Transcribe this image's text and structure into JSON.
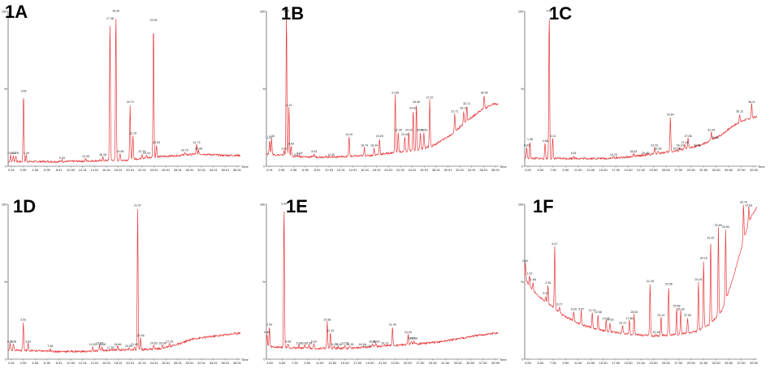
{
  "chart_data": [
    {
      "type": "line",
      "panel_label": "1A",
      "ylim": [
        0,
        100
      ],
      "y_ticks": [
        "100",
        "%",
        "0"
      ],
      "xlim": [
        0.5,
        39.0
      ],
      "x_tick_labels": [
        "0.91",
        "2.95",
        "4.95",
        "6.95",
        "8.91",
        "10.93",
        "12.91",
        "14.91",
        "16.91",
        "18.91",
        "20.91",
        "22.91",
        "24.91",
        "26.91",
        "28.91",
        "30.91",
        "32.91",
        "34.91",
        "36.91",
        "38.91"
      ],
      "x_axis_unit": "Time",
      "color": "#e8393c",
      "baseline": [
        [
          0.5,
          3
        ],
        [
          10,
          3
        ],
        [
          20,
          4
        ],
        [
          25,
          6
        ],
        [
          29,
          7
        ],
        [
          32,
          8
        ],
        [
          36,
          7
        ],
        [
          39,
          7
        ]
      ],
      "peaks": [
        {
          "x": 0.91,
          "y": 7,
          "label": "0.91"
        },
        {
          "x": 1.35,
          "y": 7,
          "label": "1.35"
        },
        {
          "x": 1.76,
          "y": 7,
          "label": "1.76"
        },
        {
          "x": 3.05,
          "y": 47,
          "label": "3.05"
        },
        {
          "x": 3.49,
          "y": 7,
          "label": "3.49"
        },
        {
          "x": 9.43,
          "y": 4,
          "label": "9.43"
        },
        {
          "x": 13.35,
          "y": 5,
          "label": "13.35"
        },
        {
          "x": 16.18,
          "y": 6,
          "label": "16.18"
        },
        {
          "x": 17.38,
          "y": 94,
          "label": "17.38"
        },
        {
          "x": 18.36,
          "y": 99,
          "label": "18.36"
        },
        {
          "x": 19.06,
          "y": 8,
          "label": "19.06"
        },
        {
          "x": 20.72,
          "y": 40,
          "label": "20.72"
        },
        {
          "x": 21.19,
          "y": 20,
          "label": "21.19"
        },
        {
          "x": 22.7,
          "y": 8,
          "label": "22.70"
        },
        {
          "x": 23.44,
          "y": 7,
          "label": "23.44"
        },
        {
          "x": 24.59,
          "y": 93,
          "label": "24.59"
        },
        {
          "x": 25.09,
          "y": 14,
          "label": "25.09"
        },
        {
          "x": 29.75,
          "y": 9,
          "label": "29.75"
        },
        {
          "x": 31.73,
          "y": 14,
          "label": "31.73"
        },
        {
          "x": 32.08,
          "y": 10,
          "label": "32.08"
        }
      ]
    },
    {
      "type": "line",
      "panel_label": "1B",
      "ylim": [
        0,
        100
      ],
      "y_ticks": [
        "100",
        "%",
        "0"
      ],
      "xlim": [
        0.5,
        39.0
      ],
      "x_tick_labels": [
        "0.91",
        "2.95",
        "4.95",
        "6.95",
        "8.91",
        "10.93",
        "12.91",
        "14.91",
        "16.91",
        "18.91",
        "20.91",
        "22.91",
        "24.91",
        "26.91",
        "28.91",
        "30.91",
        "32.91",
        "34.91",
        "36.91",
        "38.91"
      ],
      "x_axis_unit": "Time",
      "color": "#e8393c",
      "baseline": [
        [
          0.5,
          8
        ],
        [
          6,
          6
        ],
        [
          12,
          6
        ],
        [
          18,
          7
        ],
        [
          22,
          9
        ],
        [
          25,
          10
        ],
        [
          28,
          13
        ],
        [
          31,
          20
        ],
        [
          34,
          30
        ],
        [
          36,
          36
        ],
        [
          38,
          40
        ],
        [
          39,
          40
        ]
      ],
      "peaks": [
        {
          "x": 1.02,
          "y": 17,
          "label": "1.02"
        },
        {
          "x": 1.35,
          "y": 18,
          "label": "1.35"
        },
        {
          "x": 3.42,
          "y": 10,
          "label": "3.42"
        },
        {
          "x": 3.82,
          "y": 99,
          "label": "3.82"
        },
        {
          "x": 4.23,
          "y": 38,
          "label": "4.23"
        },
        {
          "x": 4.6,
          "y": 13,
          "label": "4.60"
        },
        {
          "x": 5.57,
          "y": 6,
          "label": "5.57"
        },
        {
          "x": 6.0,
          "y": 7,
          "label": "6.00"
        },
        {
          "x": 8.42,
          "y": 8,
          "label": "8.42"
        },
        {
          "x": 11.25,
          "y": 6,
          "label": "11.25"
        },
        {
          "x": 14.2,
          "y": 19,
          "label": "14.20"
        },
        {
          "x": 16.74,
          "y": 12,
          "label": "16.74"
        },
        {
          "x": 18.34,
          "y": 12,
          "label": "18.34"
        },
        {
          "x": 19.25,
          "y": 18,
          "label": "19.25"
        },
        {
          "x": 21.85,
          "y": 46,
          "label": "21.85"
        },
        {
          "x": 22.35,
          "y": 22,
          "label": "22.35"
        },
        {
          "x": 23.44,
          "y": 19,
          "label": "23.44"
        },
        {
          "x": 24.1,
          "y": 22,
          "label": "24.10"
        },
        {
          "x": 24.82,
          "y": 36,
          "label": "24.82"
        },
        {
          "x": 25.36,
          "y": 40,
          "label": "25.36"
        },
        {
          "x": 26.02,
          "y": 22,
          "label": "26.02"
        },
        {
          "x": 26.6,
          "y": 22,
          "label": "26.60"
        },
        {
          "x": 27.57,
          "y": 43,
          "label": "27.57"
        },
        {
          "x": 31.71,
          "y": 34,
          "label": "31.71"
        },
        {
          "x": 33.19,
          "y": 36,
          "label": "33.19"
        },
        {
          "x": 33.71,
          "y": 39,
          "label": "33.71"
        },
        {
          "x": 36.59,
          "y": 46,
          "label": "36.59"
        }
      ]
    },
    {
      "type": "line",
      "panel_label": "1C",
      "ylim": [
        0,
        100
      ],
      "y_ticks": [
        "100",
        "%",
        "0"
      ],
      "xlim": [
        0.5,
        39.0
      ],
      "x_tick_labels": [
        "3.50",
        "5.50",
        "7.50",
        "9.50",
        "11.50",
        "13.50",
        "15.50",
        "17.50",
        "19.50",
        "21.50",
        "23.50",
        "25.50",
        "27.50",
        "29.50",
        "31.50",
        "33.50",
        "35.50",
        "37.50",
        "39.50"
      ],
      "x_axis_unit": "Time",
      "color": "#e8393c",
      "baseline": [
        [
          0.5,
          5
        ],
        [
          8,
          5
        ],
        [
          14,
          5
        ],
        [
          18,
          6
        ],
        [
          22,
          8
        ],
        [
          26,
          10
        ],
        [
          30,
          14
        ],
        [
          33,
          20
        ],
        [
          35,
          26
        ],
        [
          37,
          30
        ],
        [
          39,
          32
        ]
      ],
      "peaks": [
        {
          "x": 0.83,
          "y": 12,
          "label": "0.83"
        },
        {
          "x": 1.38,
          "y": 16,
          "label": "1.38"
        },
        {
          "x": 3.88,
          "y": 15,
          "label": "3.88"
        },
        {
          "x": 4.56,
          "y": 99,
          "label": "4.56"
        },
        {
          "x": 5.14,
          "y": 18,
          "label": "5.14"
        },
        {
          "x": 8.61,
          "y": 7,
          "label": "8.61"
        },
        {
          "x": 15.23,
          "y": 6,
          "label": "15.23"
        },
        {
          "x": 18.53,
          "y": 8,
          "label": "18.53"
        },
        {
          "x": 20.48,
          "y": 7,
          "label": "20.48"
        },
        {
          "x": 22.02,
          "y": 12,
          "label": "22.02"
        },
        {
          "x": 22.58,
          "y": 10,
          "label": "22.58"
        },
        {
          "x": 24.64,
          "y": 32,
          "label": "24.64"
        },
        {
          "x": 25.68,
          "y": 10,
          "label": "25.68"
        },
        {
          "x": 26.24,
          "y": 12,
          "label": "26.24"
        },
        {
          "x": 27.04,
          "y": 14,
          "label": "27.04"
        },
        {
          "x": 27.58,
          "y": 18,
          "label": "27.58"
        },
        {
          "x": 29.05,
          "y": 12,
          "label": "29.05"
        },
        {
          "x": 31.43,
          "y": 22,
          "label": "31.43"
        },
        {
          "x": 32.06,
          "y": 17,
          "label": "32.06"
        },
        {
          "x": 36.12,
          "y": 34,
          "label": "36.12"
        },
        {
          "x": 38.11,
          "y": 40,
          "label": "38.11"
        }
      ]
    },
    {
      "type": "line",
      "panel_label": "1D",
      "ylim": [
        0,
        100
      ],
      "y_ticks": [
        "100",
        "%",
        "0"
      ],
      "xlim": [
        0.5,
        39.0
      ],
      "x_tick_labels": [
        "0.91",
        "2.95",
        "4.95",
        "6.95",
        "8.91",
        "10.93",
        "12.91",
        "14.91",
        "16.91",
        "18.91",
        "20.91",
        "22.91",
        "24.91",
        "26.91",
        "28.91",
        "30.91",
        "32.91",
        "34.91",
        "36.91",
        "38.91"
      ],
      "x_axis_unit": "Time",
      "color": "#e8393c",
      "baseline": [
        [
          0.5,
          6
        ],
        [
          8,
          5
        ],
        [
          14,
          5
        ],
        [
          18,
          6
        ],
        [
          22,
          6
        ],
        [
          26,
          7
        ],
        [
          29,
          10
        ],
        [
          31,
          13
        ],
        [
          33,
          14
        ],
        [
          35,
          15
        ],
        [
          37,
          16
        ],
        [
          39,
          17
        ]
      ],
      "peaks": [
        {
          "x": 0.83,
          "y": 10,
          "label": "0.83"
        },
        {
          "x": 1.38,
          "y": 10,
          "label": "1.38"
        },
        {
          "x": 3.02,
          "y": 24,
          "label": "3.02"
        },
        {
          "x": 3.82,
          "y": 10,
          "label": "3.82"
        },
        {
          "x": 7.48,
          "y": 7,
          "label": "7.48"
        },
        {
          "x": 14.53,
          "y": 8,
          "label": "14.53"
        },
        {
          "x": 15.65,
          "y": 9,
          "label": "15.65"
        },
        {
          "x": 16.08,
          "y": 8,
          "label": "16.08"
        },
        {
          "x": 17.52,
          "y": 6,
          "label": "17.52"
        },
        {
          "x": 18.66,
          "y": 8,
          "label": "18.66"
        },
        {
          "x": 20.5,
          "y": 7,
          "label": "20.50"
        },
        {
          "x": 21.43,
          "y": 8,
          "label": "21.43"
        },
        {
          "x": 21.97,
          "y": 98,
          "label": "21.97"
        },
        {
          "x": 22.46,
          "y": 14,
          "label": "22.46"
        },
        {
          "x": 24.63,
          "y": 9,
          "label": "24.63"
        },
        {
          "x": 26.08,
          "y": 9,
          "label": "26.08"
        },
        {
          "x": 27.25,
          "y": 10,
          "label": "27.25"
        }
      ]
    },
    {
      "type": "line",
      "panel_label": "1E",
      "ylim": [
        0,
        100
      ],
      "y_ticks": [
        "100",
        "%",
        "0"
      ],
      "xlim": [
        0.5,
        39.0
      ],
      "x_tick_labels": [
        "3.50",
        "5.50",
        "7.50",
        "9.50",
        "11.50",
        "13.50",
        "15.50",
        "17.50",
        "19.50",
        "21.50",
        "23.50",
        "25.50",
        "27.50",
        "29.50",
        "31.50",
        "33.50",
        "35.50",
        "37.50",
        "39.50"
      ],
      "x_axis_unit": "Time",
      "color": "#e8393c",
      "baseline": [
        [
          0.5,
          8
        ],
        [
          8,
          7
        ],
        [
          14,
          7
        ],
        [
          18,
          8
        ],
        [
          22,
          9
        ],
        [
          26,
          10
        ],
        [
          29,
          11
        ],
        [
          32,
          13
        ],
        [
          35,
          15
        ],
        [
          37,
          16
        ],
        [
          39,
          17
        ]
      ],
      "peaks": [
        {
          "x": 0.6,
          "y": 16,
          "label": "0.60"
        },
        {
          "x": 1.0,
          "y": 21,
          "label": "1.00"
        },
        {
          "x": 3.42,
          "y": 99,
          "label": "3.42"
        },
        {
          "x": 4.08,
          "y": 10,
          "label": "4.08"
        },
        {
          "x": 5.9,
          "y": 9,
          "label": "5.90"
        },
        {
          "x": 6.83,
          "y": 9,
          "label": "6.83"
        },
        {
          "x": 7.58,
          "y": 9,
          "label": "7.58"
        },
        {
          "x": 8.34,
          "y": 10,
          "label": "8.34"
        },
        {
          "x": 10.58,
          "y": 24,
          "label": "10.58"
        },
        {
          "x": 11.1,
          "y": 17,
          "label": "11.10"
        },
        {
          "x": 11.75,
          "y": 8,
          "label": "11.75"
        },
        {
          "x": 12.4,
          "y": 8,
          "label": "12.40"
        },
        {
          "x": 13.56,
          "y": 9,
          "label": "13.56"
        },
        {
          "x": 14.35,
          "y": 8,
          "label": "14.35"
        },
        {
          "x": 16.39,
          "y": 8,
          "label": "16.39"
        },
        {
          "x": 17.12,
          "y": 7,
          "label": "17.12"
        },
        {
          "x": 18.06,
          "y": 10,
          "label": "18.06"
        },
        {
          "x": 18.65,
          "y": 10,
          "label": "18.65"
        },
        {
          "x": 20.13,
          "y": 9,
          "label": "20.13"
        },
        {
          "x": 21.4,
          "y": 21,
          "label": "21.40"
        },
        {
          "x": 24.0,
          "y": 16,
          "label": "24.00"
        },
        {
          "x": 24.55,
          "y": 12,
          "label": "24.55"
        },
        {
          "x": 24.96,
          "y": 12,
          "label": "24.96"
        }
      ]
    },
    {
      "type": "line",
      "panel_label": "1F",
      "ylim": [
        0,
        100
      ],
      "y_ticks": [
        "100",
        "%",
        "0"
      ],
      "xlim": [
        0.5,
        39.0
      ],
      "x_tick_labels": [
        "3.50",
        "5.50",
        "7.50",
        "9.50",
        "11.50",
        "13.50",
        "15.50",
        "17.50",
        "19.50",
        "21.50",
        "23.50",
        "25.50",
        "27.50",
        "29.50",
        "31.50",
        "33.50",
        "35.50",
        "37.50",
        "39.50"
      ],
      "x_axis_unit": "",
      "color": "#e8393c",
      "baseline": [
        [
          0.5,
          52
        ],
        [
          1.5,
          46
        ],
        [
          3,
          40
        ],
        [
          5,
          34
        ],
        [
          7,
          28
        ],
        [
          10,
          22
        ],
        [
          14,
          18
        ],
        [
          18,
          16
        ],
        [
          22,
          15
        ],
        [
          26,
          16
        ],
        [
          29,
          18
        ],
        [
          31,
          22
        ],
        [
          33,
          30
        ],
        [
          34,
          40
        ],
        [
          35,
          52
        ],
        [
          36,
          66
        ],
        [
          37,
          80
        ],
        [
          38,
          92
        ],
        [
          39,
          98
        ]
      ],
      "peaks": [
        {
          "x": 0.62,
          "y": 62,
          "label": "0.62"
        },
        {
          "x": 1.29,
          "y": 54,
          "label": "1.29"
        },
        {
          "x": 1.88,
          "y": 50,
          "label": "1.88"
        },
        {
          "x": 3.97,
          "y": 41,
          "label": "3.97"
        },
        {
          "x": 4.35,
          "y": 48,
          "label": "4.35"
        },
        {
          "x": 5.47,
          "y": 73,
          "label": "5.47"
        },
        {
          "x": 6.27,
          "y": 34,
          "label": "6.27"
        },
        {
          "x": 8.63,
          "y": 31,
          "label": "8.63"
        },
        {
          "x": 9.87,
          "y": 31,
          "label": "9.87"
        },
        {
          "x": 11.7,
          "y": 30,
          "label": "11.70"
        },
        {
          "x": 12.66,
          "y": 29,
          "label": "12.66"
        },
        {
          "x": 14.0,
          "y": 25,
          "label": "14.00"
        },
        {
          "x": 14.63,
          "y": 24,
          "label": "14.63"
        },
        {
          "x": 16.72,
          "y": 22,
          "label": "16.72"
        },
        {
          "x": 17.86,
          "y": 25,
          "label": "17.86"
        },
        {
          "x": 18.63,
          "y": 29,
          "label": "18.63"
        },
        {
          "x": 21.28,
          "y": 49,
          "label": "21.28"
        },
        {
          "x": 22.3,
          "y": 16,
          "label": "22.30"
        },
        {
          "x": 23.1,
          "y": 27,
          "label": "23.10"
        },
        {
          "x": 24.36,
          "y": 47,
          "label": "24.36"
        },
        {
          "x": 25.68,
          "y": 33,
          "label": "25.68"
        },
        {
          "x": 26.36,
          "y": 31,
          "label": "26.36"
        },
        {
          "x": 27.5,
          "y": 27,
          "label": "27.50"
        },
        {
          "x": 29.29,
          "y": 50,
          "label": "29.29"
        },
        {
          "x": 30.15,
          "y": 64,
          "label": "30.15"
        },
        {
          "x": 31.32,
          "y": 77,
          "label": "31.32"
        },
        {
          "x": 32.6,
          "y": 85,
          "label": "32.60"
        },
        {
          "x": 33.8,
          "y": 84,
          "label": "33.80"
        },
        {
          "x": 36.76,
          "y": 100,
          "label": "36.76"
        },
        {
          "x": 37.63,
          "y": 98,
          "label": "37.63"
        }
      ]
    }
  ]
}
